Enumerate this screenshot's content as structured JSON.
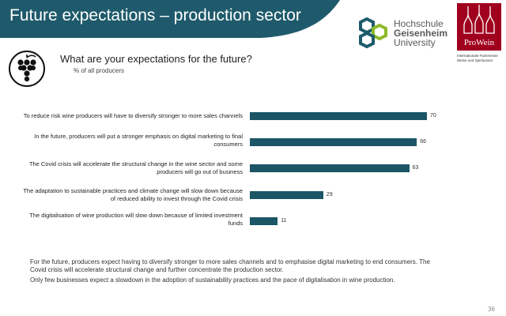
{
  "header": {
    "title": "Future expectations – production sector"
  },
  "logos": {
    "hochschule": [
      "Hochschule",
      "Geisenheim",
      "University"
    ],
    "prowein_name": "ProWein",
    "prowein_sub": "Internationale Fachmesse Weine und Spirituosen"
  },
  "question": "What are your expectations for the future?",
  "subquestion": "% of all producers",
  "chart_data": {
    "type": "bar",
    "orientation": "horizontal",
    "categories": [
      "To reduce risk wine producers will have to diversify stronger to more sales channels",
      "In the future, producers will put a stronger emphasis on digital marketing to final consumers",
      "The Covid crisis will accelerate the structural change in the wine sector and some producers will go out of business",
      "The adaptation to sustainable practices and climate change will slow down because of reduced ability to invest through the Covid crisis",
      "The digitalisation of wine production will slow down because of limited investment funds"
    ],
    "values": [
      70,
      66,
      63,
      29,
      11
    ],
    "value_labels": [
      "70",
      "66",
      "63",
      "29",
      "11"
    ],
    "xlim": [
      0,
      100
    ],
    "grid": false,
    "color": "#1b5566"
  },
  "footer": {
    "p1": "For the future, producers expect having to diversify stronger to more sales channels and to emphasise digital marketing to end consumers. The Covid crisis will accelerate structural change and further concentrate the production sector.",
    "p2": "Only few businesses expect a slowdown in the adoption of sustainability practices and the pace of digitalisation in wine production."
  },
  "page_number": "36",
  "colors": {
    "header": "#1e5a6b",
    "bar": "#1b5566",
    "prowein": "#a0001e",
    "hgu_green": "#8bbb2a",
    "hgu_teal": "#1e5a6b"
  }
}
